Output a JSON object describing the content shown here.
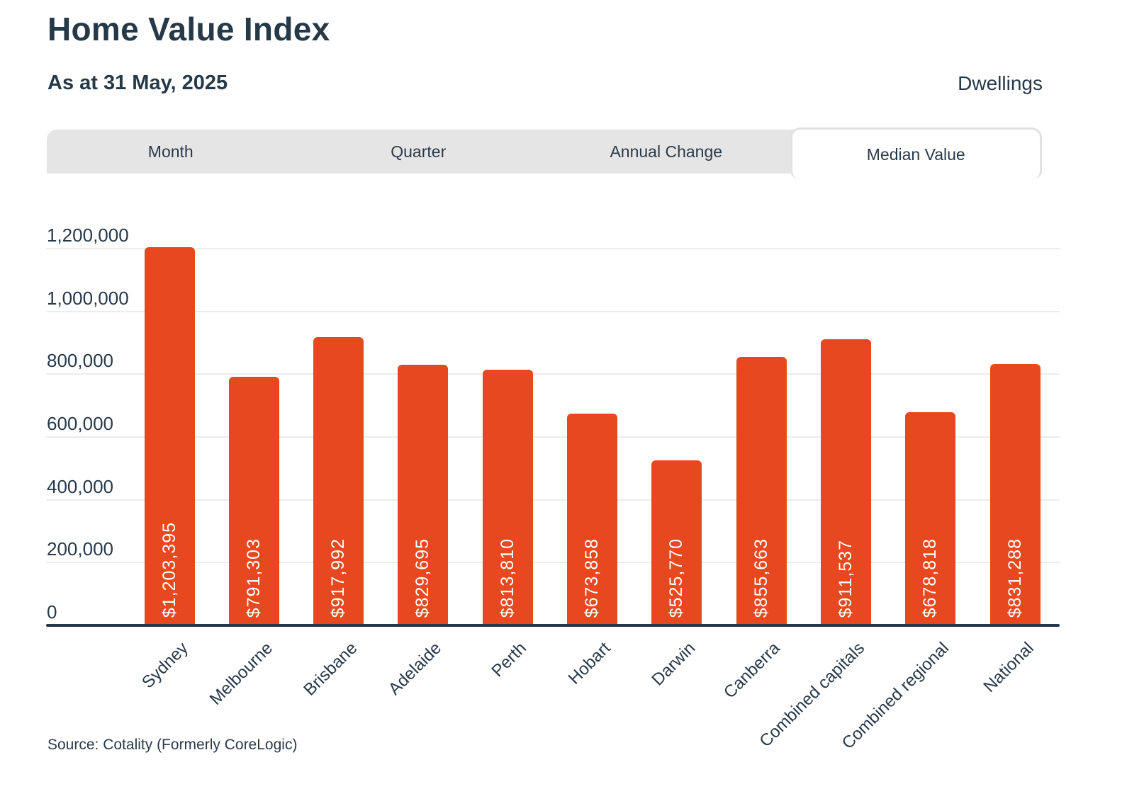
{
  "header": {
    "title": "Home Value Index",
    "subtitle": "As at 31 May, 2025",
    "property_type": "Dwellings"
  },
  "tabs": [
    {
      "label": "Month",
      "active": false
    },
    {
      "label": "Quarter",
      "active": false
    },
    {
      "label": "Annual Change",
      "active": false
    },
    {
      "label": "Median Value",
      "active": true
    }
  ],
  "chart_data": {
    "type": "bar",
    "categories": [
      "Sydney",
      "Melbourne",
      "Brisbane",
      "Adelaide",
      "Perth",
      "Hobart",
      "Darwin",
      "Canberra",
      "Combined capitals",
      "Combined regional",
      "National"
    ],
    "values": [
      1203395,
      791303,
      917992,
      829695,
      813810,
      673858,
      525770,
      855663,
      911537,
      678818,
      831288
    ],
    "bar_labels": [
      "$1,203,395",
      "$791,303",
      "$917,992",
      "$829,695",
      "$813,810",
      "$673,858",
      "$525,770",
      "$855,663",
      "$911,537",
      "$678,818",
      "$831,288"
    ],
    "title": "Home Value Index",
    "xlabel": "",
    "ylabel": "",
    "ylim": [
      0,
      1200000
    ],
    "yticks": [
      0,
      200000,
      400000,
      600000,
      800000,
      1000000,
      1200000
    ],
    "ytick_labels": [
      "0",
      "200,000",
      "400,000",
      "600,000",
      "800,000",
      "1,000,000",
      "1,200,000"
    ],
    "grid": true,
    "legend": "none",
    "bar_color": "#e8481f",
    "bar_value_label_color": "#ffffff"
  },
  "source": {
    "label": "Source: Cotality (Formerly CoreLogic)"
  },
  "colors": {
    "accent": "#e8481f",
    "text": "#263948",
    "tab_bg": "#e5e5e5",
    "active_tab_bg": "#ffffff",
    "active_tab_border": "#e2e2e2",
    "gridline": "#ececec",
    "axis": "#24384a"
  }
}
